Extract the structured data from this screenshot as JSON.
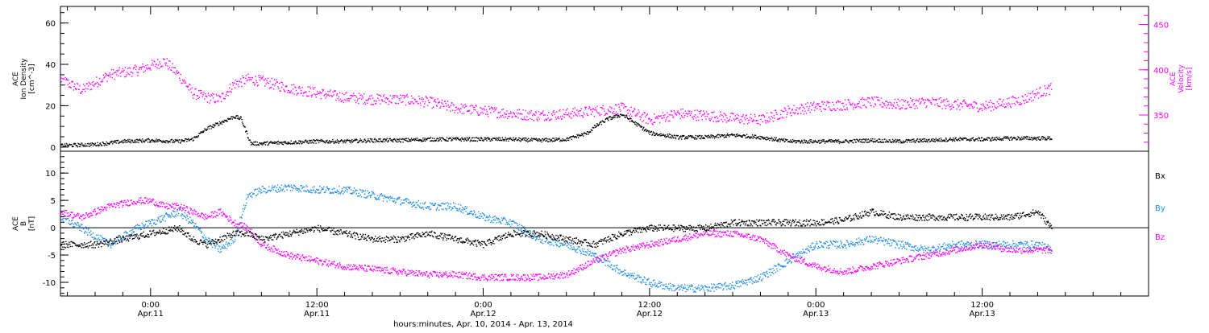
{
  "colors": {
    "black": "#000000",
    "magenta": "#ff00ff",
    "blue": "#1f8ce6",
    "axis": "#000000"
  },
  "xaxis": {
    "title": "hours:minutes, Apr. 10, 2014 - Apr. 13, 2014",
    "ticks": [
      {
        "t": 0,
        "time": "0:00",
        "date": "Apr.11"
      },
      {
        "t": 12,
        "time": "12:00",
        "date": "Apr.11"
      },
      {
        "t": 24,
        "time": "0:00",
        "date": "Apr.12"
      },
      {
        "t": 36,
        "time": "12:00",
        "date": "Apr.12"
      },
      {
        "t": 48,
        "time": "0:00",
        "date": "Apr.13"
      },
      {
        "t": 60,
        "time": "12:00",
        "date": "Apr.13"
      }
    ],
    "range_hours": [
      -6.5,
      72
    ]
  },
  "chart_data": [
    {
      "type": "scatter",
      "panel": "top",
      "ylabel_left": [
        "ACE",
        "Ion Density",
        "[cm^-3]"
      ],
      "ylabel_right": [
        "ACE",
        "Velocity",
        "[km/s]"
      ],
      "ylim_left": [
        -2,
        68
      ],
      "ylim_right": [
        310,
        470
      ],
      "yticks_left": [
        0,
        20,
        40,
        60
      ],
      "yticks_right": [
        350,
        400,
        450
      ],
      "x_units": "hours relative to 2014-04-11 00:00 UT",
      "series": [
        {
          "axis": "left",
          "color": "black",
          "x": [
            -6.5,
            -4,
            -2,
            0,
            2,
            3,
            4,
            5,
            6,
            6.5,
            7.2,
            8,
            10,
            12,
            14,
            16,
            18,
            20,
            22,
            24,
            26,
            28,
            30,
            31.5,
            32,
            33,
            34,
            36,
            38,
            40,
            42,
            44,
            46,
            48,
            50,
            52,
            54,
            56,
            58,
            60,
            62,
            64,
            65
          ],
          "y": [
            1,
            1.5,
            3,
            3.5,
            3,
            4,
            9,
            12,
            15,
            14,
            2,
            2,
            2.5,
            3,
            3,
            3.5,
            3.5,
            4,
            4,
            4,
            4,
            3.5,
            4,
            7,
            10,
            14,
            16,
            7,
            5,
            5,
            6,
            5,
            3,
            3,
            3,
            3.5,
            3,
            3.5,
            4,
            4,
            4.5,
            4.5,
            4.5
          ]
        },
        {
          "axis": "right",
          "color": "magenta",
          "x": [
            -6.5,
            -5,
            -3,
            -1,
            0,
            1,
            2,
            3,
            4,
            5,
            6,
            7,
            8,
            10,
            12,
            14,
            16,
            18,
            20,
            22,
            24,
            26,
            28,
            30,
            32,
            34,
            36,
            38,
            40,
            42,
            44,
            46,
            48,
            50,
            52,
            54,
            56,
            58,
            60,
            61,
            62,
            63,
            64,
            65
          ],
          "y": [
            390,
            378,
            395,
            400,
            405,
            410,
            395,
            375,
            370,
            368,
            385,
            390,
            388,
            380,
            375,
            370,
            368,
            368,
            365,
            358,
            355,
            352,
            350,
            352,
            355,
            358,
            345,
            352,
            350,
            347,
            345,
            355,
            360,
            362,
            365,
            362,
            365,
            362,
            360,
            362,
            365,
            368,
            375,
            380
          ]
        }
      ]
    },
    {
      "type": "scatter",
      "panel": "bottom",
      "ylabel_left": [
        "ACE",
        "B",
        "[nT]"
      ],
      "ylim": [
        -12.5,
        14
      ],
      "yticks": [
        -10,
        -5,
        0,
        5,
        10
      ],
      "x_units": "hours relative to 2014-04-11 00:00 UT",
      "series": [
        {
          "name": "Bx",
          "color": "black",
          "x": [
            -6.5,
            -4,
            -2,
            0,
            2,
            3,
            4,
            5,
            6,
            7,
            8,
            10,
            12,
            14,
            16,
            18,
            20,
            22,
            24,
            26,
            28,
            30,
            32,
            34,
            36,
            38,
            40,
            42,
            44,
            46,
            48,
            50,
            52,
            54,
            56,
            58,
            60,
            62,
            64,
            65
          ],
          "y": [
            -3,
            -3,
            -2,
            -1,
            0,
            -2,
            -3,
            -2,
            -1,
            -1,
            -2,
            -1,
            0,
            -1,
            -2,
            -2,
            -1,
            -2,
            -3,
            -1,
            -1,
            -2,
            -3,
            -1,
            0,
            0,
            0,
            1,
            1,
            1,
            1,
            1.5,
            3,
            2,
            2,
            2,
            2,
            2,
            3,
            0
          ]
        },
        {
          "name": "By",
          "color": "blue",
          "x": [
            -6.5,
            -5,
            -3,
            -1,
            0,
            1,
            2,
            3,
            4,
            5,
            6,
            7,
            8,
            10,
            12,
            14,
            16,
            18,
            20,
            22,
            24,
            26,
            28,
            30,
            32,
            34,
            36,
            38,
            40,
            42,
            44,
            46,
            48,
            50,
            52,
            54,
            56,
            58,
            60,
            62,
            64,
            65
          ],
          "y": [
            2,
            0,
            -3,
            0,
            1,
            2,
            3,
            1,
            -2,
            -4,
            -2,
            6,
            7,
            7.5,
            7,
            7,
            6,
            5,
            4,
            4,
            2,
            1,
            -2,
            -3,
            -5,
            -8,
            -10,
            -11,
            -11,
            -10.5,
            -9,
            -6,
            -3,
            -3,
            -2,
            -3,
            -4,
            -3,
            -3,
            -3,
            -3,
            -4
          ]
        },
        {
          "name": "Bz",
          "color": "magenta",
          "x": [
            -6.5,
            -5,
            -3,
            -1,
            0,
            1,
            2,
            3,
            4,
            5,
            6,
            7,
            8,
            10,
            12,
            14,
            16,
            18,
            20,
            22,
            24,
            26,
            28,
            30,
            32,
            34,
            36,
            38,
            40,
            42,
            44,
            46,
            48,
            50,
            52,
            54,
            56,
            58,
            60,
            62,
            64,
            65
          ],
          "y": [
            3,
            2,
            4,
            5,
            5,
            4,
            4,
            3,
            2,
            3,
            1,
            0,
            -3,
            -5,
            -6,
            -7,
            -7.5,
            -8,
            -8.5,
            -8.5,
            -9,
            -9,
            -9,
            -8.5,
            -6,
            -4,
            -3,
            -2,
            -1,
            -1,
            -2,
            -5,
            -7,
            -8,
            -7,
            -6,
            -5,
            -4,
            -3,
            -4,
            -4,
            -4
          ]
        }
      ]
    }
  ]
}
